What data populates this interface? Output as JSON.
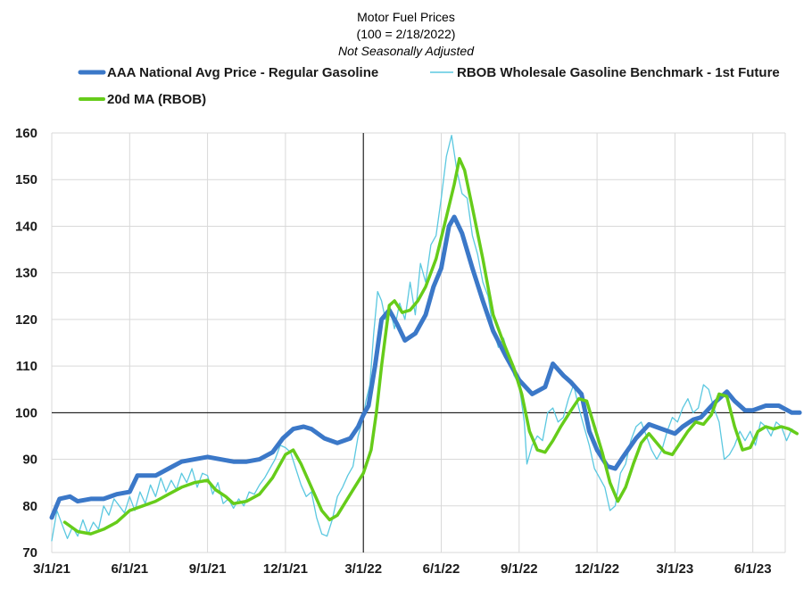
{
  "chart_data": {
    "type": "line",
    "title": "Motor Fuel Prices",
    "subtitle": "(100 = 2/18/2022)",
    "subtitle2": "Not Seasonally Adjusted",
    "ylim": [
      70,
      160
    ],
    "y_ticks": [
      70,
      80,
      90,
      100,
      110,
      120,
      130,
      140,
      150,
      160
    ],
    "x_ticks": [
      "3/1/21",
      "6/1/21",
      "9/1/21",
      "12/1/21",
      "3/1/22",
      "6/1/22",
      "9/1/22",
      "12/1/22",
      "3/1/23",
      "6/1/23"
    ],
    "x_range_months": [
      0,
      29
    ],
    "reference_line_y": 100,
    "reference_line_x_month": 12,
    "series": [
      {
        "name": "AAA National Avg Price - Regular Gasoline",
        "color": "#3b78c8",
        "points": [
          [
            0,
            77.5
          ],
          [
            0.3,
            81.5
          ],
          [
            0.7,
            82
          ],
          [
            1,
            81
          ],
          [
            1.5,
            81.5
          ],
          [
            2,
            81.5
          ],
          [
            2.5,
            82.5
          ],
          [
            3,
            83
          ],
          [
            3.3,
            86.5
          ],
          [
            3.7,
            86.5
          ],
          [
            4,
            86.5
          ],
          [
            4.5,
            88
          ],
          [
            5,
            89.5
          ],
          [
            5.5,
            90
          ],
          [
            6,
            90.5
          ],
          [
            6.5,
            90
          ],
          [
            7,
            89.5
          ],
          [
            7.5,
            89.5
          ],
          [
            8,
            90
          ],
          [
            8.5,
            91.5
          ],
          [
            8.9,
            94.5
          ],
          [
            9.3,
            96.5
          ],
          [
            9.7,
            97
          ],
          [
            10,
            96.5
          ],
          [
            10.5,
            94.5
          ],
          [
            11,
            93.5
          ],
          [
            11.5,
            94.5
          ],
          [
            11.8,
            97
          ],
          [
            12,
            99.5
          ],
          [
            12.2,
            101.5
          ],
          [
            12.45,
            110
          ],
          [
            12.7,
            120
          ],
          [
            13,
            122
          ],
          [
            13.3,
            119
          ],
          [
            13.6,
            115.5
          ],
          [
            14,
            117
          ],
          [
            14.4,
            121
          ],
          [
            14.7,
            127
          ],
          [
            15,
            131
          ],
          [
            15.3,
            140
          ],
          [
            15.5,
            142
          ],
          [
            15.8,
            138.5
          ],
          [
            16.2,
            131
          ],
          [
            16.6,
            124
          ],
          [
            17,
            117.5
          ],
          [
            17.5,
            112
          ],
          [
            18,
            107
          ],
          [
            18.5,
            104
          ],
          [
            19,
            105.5
          ],
          [
            19.3,
            110.5
          ],
          [
            19.7,
            108
          ],
          [
            20,
            106.5
          ],
          [
            20.4,
            104
          ],
          [
            20.7,
            96
          ],
          [
            21,
            92
          ],
          [
            21.4,
            88.5
          ],
          [
            21.7,
            88
          ],
          [
            22,
            90.5
          ],
          [
            22.5,
            94.5
          ],
          [
            23,
            97.5
          ],
          [
            23.5,
            96.5
          ],
          [
            24,
            95.5
          ],
          [
            24.3,
            97
          ],
          [
            24.7,
            98.5
          ],
          [
            25,
            99
          ],
          [
            25.5,
            102
          ],
          [
            26,
            104.5
          ],
          [
            26.3,
            102.5
          ],
          [
            26.7,
            100.5
          ],
          [
            27,
            100.5
          ],
          [
            27.5,
            101.5
          ],
          [
            28,
            101.5
          ],
          [
            28.5,
            100
          ],
          [
            28.8,
            100
          ]
        ]
      },
      {
        "name": "RBOB Wholesale Gasoline Benchmark - 1st Future",
        "color": "#5bc8e0",
        "points": [
          [
            0,
            72.5
          ],
          [
            0.2,
            79
          ],
          [
            0.4,
            76
          ],
          [
            0.6,
            73
          ],
          [
            0.8,
            75.5
          ],
          [
            1,
            73.5
          ],
          [
            1.2,
            77
          ],
          [
            1.4,
            74
          ],
          [
            1.6,
            76.5
          ],
          [
            1.8,
            75
          ],
          [
            2,
            80
          ],
          [
            2.2,
            78
          ],
          [
            2.4,
            81.5
          ],
          [
            2.6,
            80
          ],
          [
            2.8,
            78.5
          ],
          [
            3,
            82
          ],
          [
            3.2,
            79
          ],
          [
            3.4,
            83
          ],
          [
            3.6,
            80.5
          ],
          [
            3.8,
            84.5
          ],
          [
            4,
            82
          ],
          [
            4.2,
            86
          ],
          [
            4.4,
            83
          ],
          [
            4.6,
            85.5
          ],
          [
            4.8,
            83.5
          ],
          [
            5,
            87
          ],
          [
            5.2,
            85
          ],
          [
            5.4,
            88
          ],
          [
            5.6,
            84
          ],
          [
            5.8,
            87
          ],
          [
            6,
            86.5
          ],
          [
            6.2,
            82.5
          ],
          [
            6.4,
            85
          ],
          [
            6.6,
            80.5
          ],
          [
            6.8,
            81.5
          ],
          [
            7,
            79.5
          ],
          [
            7.2,
            81.5
          ],
          [
            7.4,
            80
          ],
          [
            7.6,
            83
          ],
          [
            7.8,
            82.5
          ],
          [
            8,
            84.5
          ],
          [
            8.2,
            86
          ],
          [
            8.4,
            88
          ],
          [
            8.6,
            90
          ],
          [
            8.8,
            93
          ],
          [
            9,
            92.5
          ],
          [
            9.2,
            91.5
          ],
          [
            9.4,
            88
          ],
          [
            9.6,
            84.5
          ],
          [
            9.8,
            82
          ],
          [
            10,
            83
          ],
          [
            10.2,
            77.5
          ],
          [
            10.4,
            74
          ],
          [
            10.6,
            73.5
          ],
          [
            10.8,
            77
          ],
          [
            11,
            82
          ],
          [
            11.2,
            84
          ],
          [
            11.4,
            86.5
          ],
          [
            11.6,
            88.5
          ],
          [
            11.8,
            95
          ],
          [
            12,
            99
          ],
          [
            12.1,
            102.5
          ],
          [
            12.25,
            106
          ],
          [
            12.4,
            117
          ],
          [
            12.55,
            126
          ],
          [
            12.7,
            124
          ],
          [
            12.85,
            120
          ],
          [
            13,
            123
          ],
          [
            13.2,
            118
          ],
          [
            13.4,
            123.5
          ],
          [
            13.6,
            120
          ],
          [
            13.8,
            128
          ],
          [
            14,
            121
          ],
          [
            14.2,
            132
          ],
          [
            14.4,
            128
          ],
          [
            14.6,
            136
          ],
          [
            14.8,
            138
          ],
          [
            15,
            146
          ],
          [
            15.2,
            155
          ],
          [
            15.4,
            159.5
          ],
          [
            15.6,
            152
          ],
          [
            15.8,
            147
          ],
          [
            16,
            146
          ],
          [
            16.2,
            138
          ],
          [
            16.4,
            134
          ],
          [
            16.6,
            128
          ],
          [
            16.8,
            125
          ],
          [
            17,
            118
          ],
          [
            17.2,
            114
          ],
          [
            17.4,
            116
          ],
          [
            17.6,
            112
          ],
          [
            17.8,
            108
          ],
          [
            18,
            106
          ],
          [
            18.2,
            98
          ],
          [
            18.3,
            89
          ],
          [
            18.5,
            93
          ],
          [
            18.7,
            95
          ],
          [
            18.9,
            94
          ],
          [
            19.1,
            100
          ],
          [
            19.3,
            101
          ],
          [
            19.5,
            98
          ],
          [
            19.7,
            99
          ],
          [
            19.9,
            103
          ],
          [
            20.1,
            106
          ],
          [
            20.3,
            101
          ],
          [
            20.5,
            97
          ],
          [
            20.7,
            93
          ],
          [
            20.9,
            88
          ],
          [
            21.1,
            86
          ],
          [
            21.3,
            84
          ],
          [
            21.5,
            79
          ],
          [
            21.7,
            80
          ],
          [
            21.9,
            87
          ],
          [
            22.1,
            89
          ],
          [
            22.3,
            94
          ],
          [
            22.5,
            97
          ],
          [
            22.7,
            98
          ],
          [
            22.9,
            95
          ],
          [
            23.1,
            92
          ],
          [
            23.3,
            90
          ],
          [
            23.5,
            92
          ],
          [
            23.7,
            96
          ],
          [
            23.9,
            99
          ],
          [
            24.1,
            98
          ],
          [
            24.3,
            101
          ],
          [
            24.5,
            103
          ],
          [
            24.7,
            100
          ],
          [
            24.9,
            101
          ],
          [
            25.1,
            106
          ],
          [
            25.3,
            105
          ],
          [
            25.5,
            101
          ],
          [
            25.7,
            98
          ],
          [
            25.9,
            90
          ],
          [
            26.1,
            91
          ],
          [
            26.3,
            93
          ],
          [
            26.5,
            96
          ],
          [
            26.7,
            94
          ],
          [
            26.9,
            96
          ],
          [
            27.1,
            93
          ],
          [
            27.3,
            98
          ],
          [
            27.5,
            97
          ],
          [
            27.7,
            95
          ],
          [
            27.9,
            98
          ],
          [
            28.1,
            97
          ],
          [
            28.3,
            94
          ],
          [
            28.5,
            96.5
          ],
          [
            28.7,
            95.5
          ]
        ]
      },
      {
        "name": "20d MA (RBOB)",
        "color": "#66cc1a",
        "points": [
          [
            0.5,
            76.5
          ],
          [
            1,
            74.5
          ],
          [
            1.5,
            74
          ],
          [
            2,
            75
          ],
          [
            2.5,
            76.5
          ],
          [
            3,
            79
          ],
          [
            3.5,
            80
          ],
          [
            4,
            81
          ],
          [
            4.5,
            82.5
          ],
          [
            5,
            84
          ],
          [
            5.5,
            85
          ],
          [
            6,
            85.5
          ],
          [
            6.3,
            83.5
          ],
          [
            6.7,
            82
          ],
          [
            7,
            80.5
          ],
          [
            7.5,
            81
          ],
          [
            8,
            82.5
          ],
          [
            8.5,
            86
          ],
          [
            9,
            91
          ],
          [
            9.3,
            92
          ],
          [
            9.6,
            89
          ],
          [
            10,
            84
          ],
          [
            10.4,
            79
          ],
          [
            10.7,
            77
          ],
          [
            11,
            78
          ],
          [
            11.5,
            82.5
          ],
          [
            12,
            87
          ],
          [
            12.3,
            92
          ],
          [
            12.5,
            100
          ],
          [
            12.7,
            110
          ],
          [
            13,
            123
          ],
          [
            13.2,
            124
          ],
          [
            13.5,
            121.5
          ],
          [
            13.8,
            122
          ],
          [
            14.1,
            124
          ],
          [
            14.4,
            127
          ],
          [
            14.8,
            133
          ],
          [
            15.2,
            142
          ],
          [
            15.5,
            149
          ],
          [
            15.7,
            154.5
          ],
          [
            15.9,
            152
          ],
          [
            16.2,
            144
          ],
          [
            16.6,
            133
          ],
          [
            17,
            121
          ],
          [
            17.4,
            115
          ],
          [
            17.8,
            109.5
          ],
          [
            18.1,
            104
          ],
          [
            18.4,
            96
          ],
          [
            18.7,
            92
          ],
          [
            19,
            91.5
          ],
          [
            19.3,
            94
          ],
          [
            19.6,
            97
          ],
          [
            20,
            100.5
          ],
          [
            20.3,
            103
          ],
          [
            20.6,
            102.5
          ],
          [
            20.9,
            97
          ],
          [
            21.2,
            91.5
          ],
          [
            21.5,
            85
          ],
          [
            21.8,
            81
          ],
          [
            22.1,
            84
          ],
          [
            22.4,
            89
          ],
          [
            22.7,
            93.5
          ],
          [
            23,
            95.5
          ],
          [
            23.3,
            93.5
          ],
          [
            23.6,
            91.5
          ],
          [
            23.9,
            91
          ],
          [
            24.2,
            93.5
          ],
          [
            24.5,
            96
          ],
          [
            24.8,
            98
          ],
          [
            25.1,
            97.5
          ],
          [
            25.4,
            99.5
          ],
          [
            25.7,
            104
          ],
          [
            26,
            103.5
          ],
          [
            26.3,
            97
          ],
          [
            26.6,
            92
          ],
          [
            26.9,
            92.5
          ],
          [
            27.2,
            96
          ],
          [
            27.5,
            97
          ],
          [
            27.8,
            96.5
          ],
          [
            28.1,
            97
          ],
          [
            28.4,
            96.5
          ],
          [
            28.7,
            95.5
          ]
        ]
      }
    ]
  }
}
